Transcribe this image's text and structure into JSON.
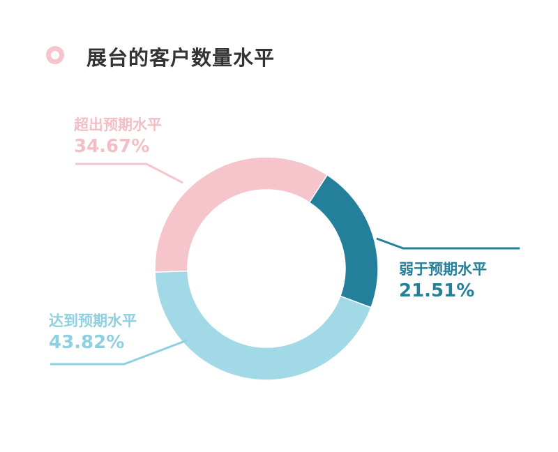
{
  "title": "展台的客户数量水平",
  "colors": {
    "title_ring": "#f5c5cb",
    "title_text": "#333333"
  },
  "chart_data": {
    "type": "pie",
    "donut": true,
    "title": "展台的客户数量水平",
    "slices": [
      {
        "label": "弱于预期水平",
        "value": 21.51,
        "display": "21.51%",
        "color": "#247f9a",
        "text_color": "#247f9a"
      },
      {
        "label": "达到预期水平",
        "value": 43.82,
        "display": "43.82%",
        "color": "#a2d9e6",
        "text_color": "#8fd0e0"
      },
      {
        "label": "超出预期水平",
        "value": 34.67,
        "display": "34.67%",
        "color": "#f5c5cb",
        "text_color": "#f3bec5"
      }
    ]
  }
}
